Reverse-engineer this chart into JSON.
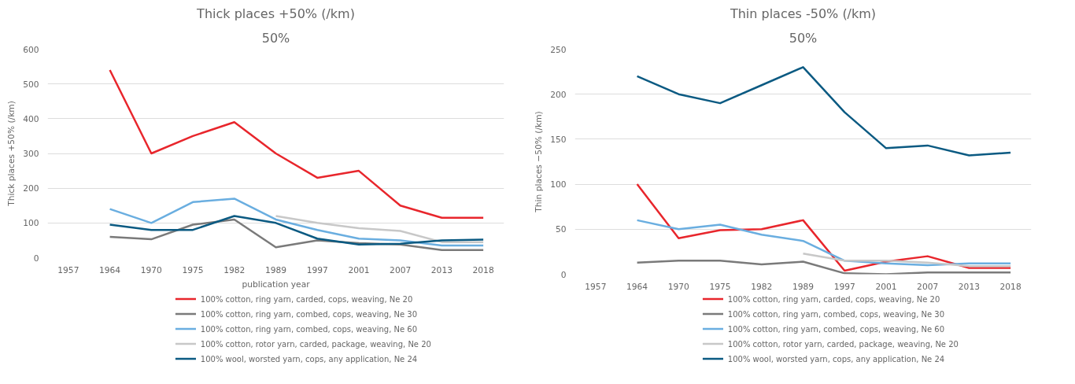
{
  "chart_data": [
    {
      "type": "line",
      "title": "Thick places +50% (/km)",
      "subtitle": "50%",
      "xlabel": "publication year",
      "ylabel": "Thick places +50% (/km)",
      "categories": [
        "1957",
        "1964",
        "1970",
        "1975",
        "1982",
        "1989",
        "1997",
        "2001",
        "2007",
        "2013",
        "2018"
      ],
      "ylim": [
        0,
        600
      ],
      "yticks": [
        0,
        100,
        200,
        300,
        400,
        500,
        600
      ],
      "grid": "y",
      "legend": "bottom",
      "marker": "none",
      "line_style": "solid",
      "series": [
        {
          "name": "100% cotton, ring yarn, carded, cops, weaving, Ne 20",
          "color": "#e8262c",
          "values": [
            null,
            540,
            300,
            350,
            390,
            300,
            230,
            250,
            150,
            115,
            115
          ]
        },
        {
          "name": "100% cotton, ring yarn, combed, cops, weaving, Ne 30",
          "color": "#7a7a7a",
          "values": [
            null,
            60,
            53,
            95,
            110,
            30,
            50,
            42,
            38,
            22,
            22
          ]
        },
        {
          "name": "100% cotton, ring yarn, combed, cops, weaving, Ne 60",
          "color": "#6aaee0",
          "values": [
            null,
            140,
            100,
            160,
            170,
            110,
            80,
            55,
            50,
            35,
            35
          ]
        },
        {
          "name": "100% cotton, rotor yarn, carded, package, weaving, Ne 20",
          "color": "#c8c8c8",
          "values": [
            null,
            null,
            null,
            null,
            null,
            120,
            100,
            85,
            77,
            45,
            45
          ]
        },
        {
          "name": "100% wool, worsted yarn, cops, any application, Ne 24",
          "color": "#0b5a82",
          "values": [
            null,
            95,
            80,
            80,
            120,
            100,
            55,
            38,
            40,
            50,
            52
          ]
        }
      ]
    },
    {
      "type": "line",
      "title": "Thin places -50% (/km)",
      "subtitle": "50%",
      "ylabel": "Thin places −50% (/km)",
      "categories": [
        "1957",
        "1964",
        "1970",
        "1975",
        "1982",
        "1989",
        "1997",
        "2001",
        "2007",
        "2013",
        "2018"
      ],
      "ylim": [
        0,
        250
      ],
      "yticks": [
        0,
        50,
        100,
        150,
        200,
        250
      ],
      "grid": "y",
      "legend": "bottom",
      "marker": "none",
      "line_style": "solid",
      "series": [
        {
          "name": "100% cotton, ring yarn, carded, cops, weaving, Ne 20",
          "color": "#e8262c",
          "values": [
            null,
            100,
            40,
            49,
            50,
            60,
            4,
            14,
            20,
            7,
            7
          ]
        },
        {
          "name": "100% cotton, ring yarn, combed, cops, weaving, Ne 30",
          "color": "#7a7a7a",
          "values": [
            null,
            13,
            15,
            15,
            11,
            14,
            1,
            0,
            2,
            2,
            2
          ]
        },
        {
          "name": "100% cotton, ring yarn, combed, cops, weaving, Ne 60",
          "color": "#6aaee0",
          "values": [
            null,
            60,
            50,
            55,
            44,
            37,
            15,
            12,
            10,
            12,
            12
          ]
        },
        {
          "name": "100% cotton, rotor yarn, carded, package, weaving, Ne 20",
          "color": "#c8c8c8",
          "values": [
            null,
            null,
            null,
            null,
            null,
            23,
            15,
            15,
            13,
            9,
            9
          ]
        },
        {
          "name": "100% wool, worsted yarn, cops, any application, Ne 24",
          "color": "#0b5a82",
          "values": [
            null,
            220,
            200,
            190,
            210,
            230,
            180,
            140,
            143,
            132,
            135
          ]
        }
      ]
    }
  ]
}
